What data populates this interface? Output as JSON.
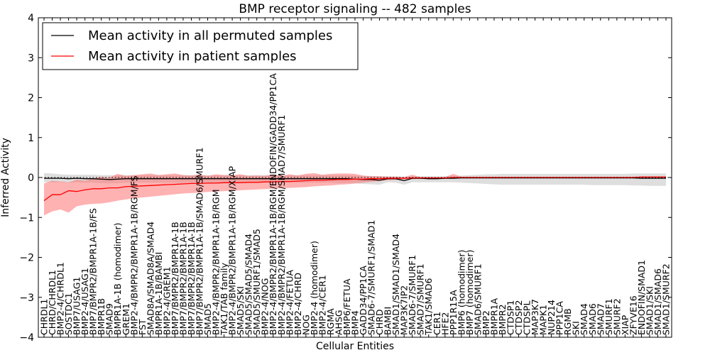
{
  "chart_data": {
    "type": "line",
    "title": "BMP receptor signaling -- 482 samples",
    "xlabel": "Cellular Entities",
    "ylabel": "Inferred Activity",
    "ylim": [
      -4,
      4
    ],
    "yticks": [
      "−4",
      "−3",
      "−2",
      "−1",
      "0",
      "1",
      "2",
      "3",
      "4"
    ],
    "grid": false,
    "legend_position": "top-left",
    "colors": {
      "permuted_line": "#000000",
      "patient_line": "#ff0000",
      "permuted_band": "#c8c8c8",
      "patient_band": "#ff6666"
    },
    "categories": [
      "CHRDL1",
      "CHRD/CHRDL1",
      "BMP2-4/CHRDL1",
      "SOSTDC1",
      "BMP7/USAG1",
      "BMP2-4/USAG1",
      "BMP7/BMPR2/BMPR1A-1B/FS",
      "BMPR1B",
      "SMAD9",
      "BMPR1A-1B (homodimer)",
      "GREM1",
      "BMP2-4/BMPR2/BMPR1A-1B/RGM/FS",
      "FST",
      "SMAD8A/SMAD8A/SMAD4",
      "BMPR1A-1B/BAMBI",
      "BMP2-4/GREM1",
      "BMP7/BMPR2/BMPR1A-1B",
      "BMP7/BMPR2/BMPR1A-1B",
      "BMP7/BMPR2/BMPR1A-1B",
      "BMP7/BMPR2/BMPR1A-1B/SMAD6/SMURF1",
      "SMAD5",
      "BMP2-4/BMPR2/BMPR1A-1B/RGM",
      "TAK1/TAB family",
      "BMP2-4/BMPR2/BMPR1A-1B/RGM/XIAP",
      "SMAD5/SKI",
      "SMAD5/SMAD5/SMAD4",
      "SMAD5/SMURF1/SMAD5",
      "BMP2-4/NOG",
      "BMP2-4/BMPR2/BMPR1A-1B/RGM/ENDOFIN/GADD34/PP1CA",
      "BMP2-4/BMPR2/BMPR1A-1B/RGM/SMAD7/SMURF1",
      "BMP2-4/FETUA",
      "BMP2-4/CHRD",
      "NOG",
      "BMP2-4 (homodimer)",
      "BMP2-4/CER1",
      "RGMA",
      "AHSG",
      "BMP6/FETUA",
      "BMP4",
      "GADD34/PP1CA",
      "SMAD6-7/SMURF1/SMAD1",
      "CHRD",
      "BAMBI",
      "SMAD1/SMAD1/SMAD4",
      "MAP3K7IP2",
      "SMAD6-7/SMURF1",
      "SMAD7/SMURF1",
      "TAK1/SMAD6",
      "CER1",
      "HFE2",
      "PPP1R15A",
      "BMP6 (homodimer)",
      "BMP7 (homodimer)",
      "SMAD6/SMURF1",
      "BMP2",
      "BMPR1A",
      "BMPR2",
      "CTDSP1",
      "CTDSP2",
      "CTDSPL",
      "MAP3K7",
      "MAPK1",
      "NUP214",
      "PPP1CA",
      "RGMB",
      "SKI",
      "SMAD4",
      "SMAD6",
      "SMAD7",
      "SMURF1",
      "SMURF2",
      "XIAP",
      "ZFYVE16",
      "ENDOFIN/SMAD1",
      "SMAD1/SKI",
      "SMAD1/SMAD6",
      "SMAD1/SMURF2"
    ],
    "series": [
      {
        "name": "Mean activity in all permuted samples",
        "values": [
          -0.02,
          -0.02,
          -0.02,
          -0.03,
          -0.02,
          -0.03,
          -0.03,
          -0.04,
          -0.05,
          -0.04,
          -0.03,
          -0.03,
          -0.03,
          -0.03,
          -0.03,
          -0.03,
          -0.03,
          -0.03,
          -0.03,
          -0.03,
          -0.03,
          -0.03,
          -0.03,
          -0.03,
          -0.03,
          -0.03,
          -0.03,
          -0.03,
          -0.03,
          -0.03,
          -0.03,
          -0.03,
          -0.03,
          -0.03,
          -0.03,
          -0.03,
          -0.03,
          -0.03,
          -0.04,
          -0.05,
          -0.05,
          -0.07,
          -0.03,
          -0.03,
          -0.08,
          -0.02,
          -0.02,
          -0.03,
          -0.03,
          -0.02,
          -0.02,
          -0.01,
          -0.01,
          -0.01,
          -0.01,
          -0.01,
          -0.01,
          -0.01,
          -0.01,
          -0.01,
          -0.01,
          -0.01,
          -0.01,
          -0.01,
          -0.01,
          -0.01,
          -0.01,
          -0.01,
          -0.01,
          -0.01,
          -0.01,
          -0.01,
          -0.01,
          -0.02,
          -0.02,
          -0.02,
          -0.02
        ],
        "lower": [
          -0.12,
          -0.12,
          -0.12,
          -0.13,
          -0.12,
          -0.13,
          -0.13,
          -0.14,
          -0.15,
          -0.14,
          -0.13,
          -0.13,
          -0.13,
          -0.13,
          -0.13,
          -0.13,
          -0.13,
          -0.13,
          -0.13,
          -0.13,
          -0.13,
          -0.13,
          -0.13,
          -0.13,
          -0.13,
          -0.13,
          -0.13,
          -0.13,
          -0.13,
          -0.13,
          -0.13,
          -0.13,
          -0.13,
          -0.13,
          -0.13,
          -0.13,
          -0.14,
          -0.14,
          -0.15,
          -0.16,
          -0.17,
          -0.18,
          -0.12,
          -0.13,
          -0.18,
          -0.12,
          -0.12,
          -0.12,
          -0.12,
          -0.12,
          -0.12,
          -0.13,
          -0.14,
          -0.15,
          -0.16,
          -0.17,
          -0.18,
          -0.18,
          -0.18,
          -0.18,
          -0.18,
          -0.18,
          -0.18,
          -0.18,
          -0.18,
          -0.18,
          -0.18,
          -0.19,
          -0.19,
          -0.19,
          -0.19,
          -0.19,
          -0.2,
          -0.2,
          -0.21,
          -0.21,
          -0.21
        ],
        "upper": [
          0.11,
          0.1,
          0.08,
          0.07,
          0.07,
          0.07,
          0.07,
          0.06,
          0.06,
          0.06,
          0.06,
          0.06,
          0.06,
          0.06,
          0.06,
          0.06,
          0.06,
          0.06,
          0.06,
          0.06,
          0.06,
          0.06,
          0.06,
          0.06,
          0.06,
          0.06,
          0.06,
          0.06,
          0.06,
          0.06,
          0.06,
          0.06,
          0.06,
          0.06,
          0.06,
          0.06,
          0.06,
          0.06,
          0.05,
          0.04,
          0.04,
          0.03,
          0.03,
          0.03,
          0.02,
          0.03,
          0.03,
          0.03,
          0.03,
          0.03,
          0.04,
          0.05,
          0.06,
          0.07,
          0.08,
          0.08,
          0.09,
          0.09,
          0.09,
          0.09,
          0.09,
          0.09,
          0.09,
          0.09,
          0.09,
          0.09,
          0.09,
          0.09,
          0.09,
          0.09,
          0.09,
          0.09,
          0.1,
          0.1,
          0.1,
          0.1,
          0.1
        ]
      },
      {
        "name": "Mean activity in patient samples",
        "values": [
          -0.58,
          -0.43,
          -0.43,
          -0.33,
          -0.35,
          -0.31,
          -0.28,
          -0.28,
          -0.26,
          -0.26,
          -0.23,
          -0.22,
          -0.21,
          -0.2,
          -0.19,
          -0.18,
          -0.17,
          -0.16,
          -0.15,
          -0.15,
          -0.14,
          -0.14,
          -0.13,
          -0.13,
          -0.13,
          -0.12,
          -0.12,
          -0.11,
          -0.11,
          -0.1,
          -0.1,
          -0.09,
          -0.08,
          -0.07,
          -0.07,
          -0.06,
          -0.05,
          -0.05,
          -0.04,
          -0.04,
          -0.03,
          -0.03,
          -0.02,
          -0.02,
          -0.02,
          -0.01,
          -0.01,
          -0.01,
          -0.01,
          -0.01,
          0.0,
          0.0,
          0.0,
          0.0,
          0.0,
          0.0,
          0.0,
          0.0,
          0.0,
          0.0,
          0.0,
          0.0,
          0.0,
          0.0,
          0.0,
          0.0,
          0.0,
          0.0,
          0.0,
          0.0,
          0.0,
          0.0,
          0.0,
          0.01,
          0.01,
          0.01,
          0.01
        ],
        "lower": [
          -0.95,
          -0.85,
          -0.8,
          -0.88,
          -0.72,
          -0.68,
          -0.66,
          -0.65,
          -0.62,
          -0.58,
          -0.55,
          -0.52,
          -0.5,
          -0.48,
          -0.46,
          -0.44,
          -0.42,
          -0.4,
          -0.39,
          -0.38,
          -0.36,
          -0.35,
          -0.34,
          -0.33,
          -0.32,
          -0.31,
          -0.3,
          -0.29,
          -0.28,
          -0.27,
          -0.26,
          -0.25,
          -0.24,
          -0.22,
          -0.21,
          -0.2,
          -0.18,
          -0.17,
          -0.15,
          -0.13,
          -0.11,
          -0.09,
          -0.07,
          -0.06,
          -0.05,
          -0.04,
          -0.03,
          -0.03,
          -0.02,
          -0.02,
          -0.02,
          -0.02,
          -0.02,
          -0.02,
          -0.02,
          -0.02,
          -0.02,
          -0.02,
          -0.02,
          -0.02,
          -0.02,
          -0.02,
          -0.02,
          -0.02,
          -0.02,
          -0.02,
          -0.02,
          -0.02,
          -0.02,
          -0.02,
          -0.02,
          -0.02,
          -0.02,
          -0.02,
          -0.02,
          -0.02,
          -0.02
        ],
        "upper": [
          -0.15,
          -0.08,
          -0.1,
          -0.12,
          -0.05,
          -0.08,
          -0.02,
          0.02,
          0.0,
          0.09,
          0.04,
          0.06,
          0.08,
          0.1,
          0.06,
          0.08,
          0.1,
          0.06,
          0.05,
          0.08,
          0.04,
          0.08,
          0.06,
          0.06,
          0.08,
          0.04,
          0.05,
          0.04,
          0.08,
          0.04,
          0.08,
          0.05,
          0.09,
          0.11,
          0.07,
          0.09,
          0.1,
          0.1,
          0.09,
          0.05,
          0.03,
          0.03,
          0.02,
          0.02,
          0.01,
          0.07,
          0.01,
          0.01,
          0.01,
          0.01,
          0.09,
          0.02,
          0.02,
          0.02,
          0.02,
          0.02,
          0.02,
          0.02,
          0.02,
          0.02,
          0.02,
          0.02,
          0.02,
          0.02,
          0.02,
          0.02,
          0.02,
          0.02,
          0.02,
          0.02,
          0.02,
          0.02,
          0.02,
          0.03,
          0.03,
          0.03,
          0.03
        ]
      }
    ]
  }
}
